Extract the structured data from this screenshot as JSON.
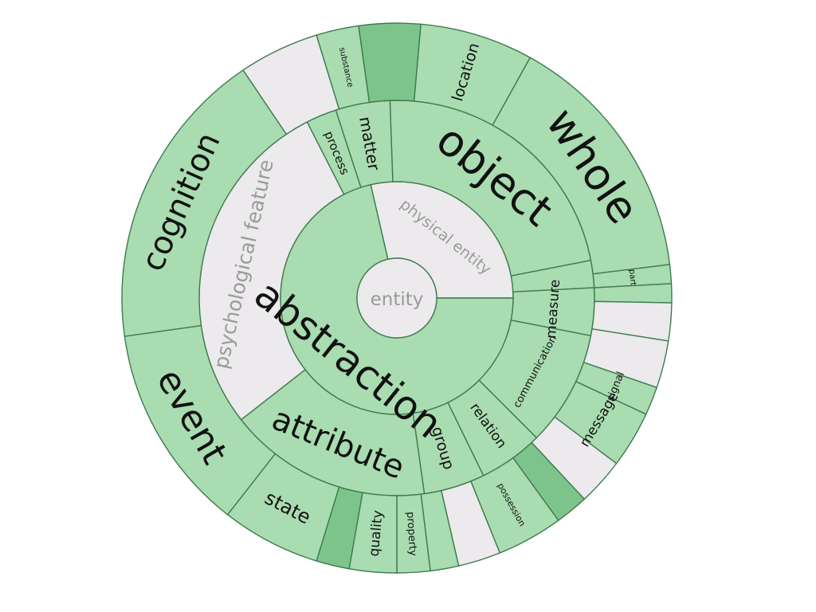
{
  "diagram": {
    "type": "sunburst",
    "colors": {
      "green": "#a9dcb0",
      "green_dark": "#7cc48b",
      "grey": "#eceaec",
      "stroke": "#3f7a4f",
      "text_dark": "#111111",
      "text_grey": "#9a9a9a"
    },
    "center": {
      "label": "entity"
    },
    "ring1": [
      {
        "label": "physical entity",
        "color": "grey"
      },
      {
        "label": "abstraction",
        "color": "green"
      }
    ],
    "ring2": [
      {
        "label": "object",
        "color": "green"
      },
      {
        "label": "",
        "color": "green"
      },
      {
        "label": "measure",
        "color": "green"
      },
      {
        "label": "communication",
        "color": "green"
      },
      {
        "label": "relation",
        "color": "green"
      },
      {
        "label": "group",
        "color": "green"
      },
      {
        "label": "attribute",
        "color": "green"
      },
      {
        "label": "psychological feature",
        "color": "grey"
      },
      {
        "label": "process",
        "color": "green"
      },
      {
        "label": "matter",
        "color": "green"
      }
    ],
    "ring3": [
      {
        "label": "location",
        "color": "green"
      },
      {
        "label": "whole",
        "color": "green"
      },
      {
        "label": "part",
        "color": "green"
      },
      {
        "label": "",
        "color": "green"
      },
      {
        "label": "",
        "color": "grey"
      },
      {
        "label": "",
        "color": "grey"
      },
      {
        "label": "signal",
        "color": "green"
      },
      {
        "label": "message",
        "color": "green"
      },
      {
        "label": "",
        "color": "grey"
      },
      {
        "label": "",
        "color": "green_dark"
      },
      {
        "label": "possession",
        "color": "green"
      },
      {
        "label": "",
        "color": "grey"
      },
      {
        "label": "",
        "color": "green"
      },
      {
        "label": "property",
        "color": "green"
      },
      {
        "label": "quality",
        "color": "green"
      },
      {
        "label": "",
        "color": "green_dark"
      },
      {
        "label": "state",
        "color": "green"
      },
      {
        "label": "event",
        "color": "green"
      },
      {
        "label": "cognition",
        "color": "green"
      },
      {
        "label": "",
        "color": "grey"
      },
      {
        "label": "substance",
        "color": "green"
      },
      {
        "label": "",
        "color": "green_dark"
      }
    ]
  }
}
